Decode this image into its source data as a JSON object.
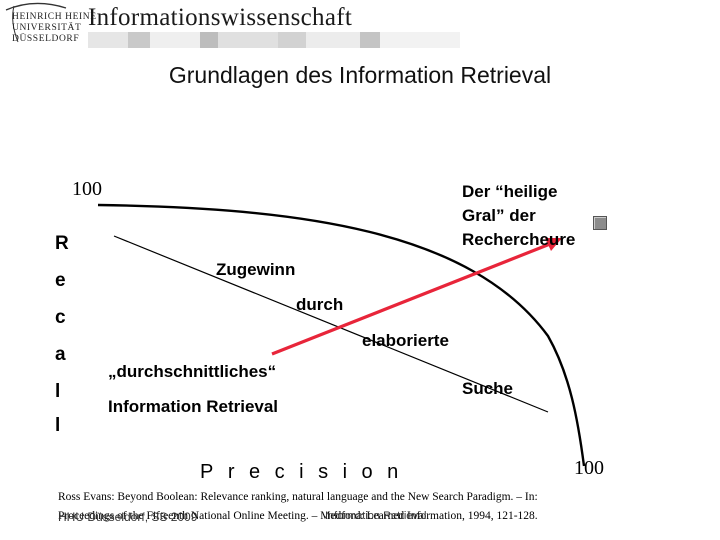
{
  "header": {
    "logo": {
      "line1": "HEINRICH HEINE",
      "line2": "UNIVERSITÄT",
      "line3": "DÜSSELDORF"
    },
    "brand": "Informationswissenschaft"
  },
  "title": "Grundlagen des Information Retrieval",
  "diagram": {
    "recall_max": "100",
    "precision_max": "100",
    "recall_letters": [
      "R",
      "e",
      "c",
      "a",
      "l",
      "l"
    ],
    "precision_label": "Precision",
    "gral_lines": [
      "Der “heilige",
      "Gral” der",
      "Rechercheure"
    ],
    "curve_labels": [
      "Zugewinn",
      "durch",
      "elaborierte",
      "Suche",
      "„durchschnittliches“",
      "Information Retrieval"
    ],
    "colors": {
      "arrow": "#e8253a",
      "curve": "#000000",
      "marker": "#8c8c8c"
    },
    "marker_icon": "grey-square-icon"
  },
  "reference": {
    "line1": "Ross Evans: Beyond Boolean: Relevance ranking, natural language and the New Search Paradigm. – In:",
    "line2": "Proceedings of the Fifteenth National Online Meeting. – Medford: Learned Information, 1994, 121-128."
  },
  "footer": {
    "left": "HHU Düsseldorf, SS 2009",
    "center": "Information Retrieval"
  }
}
